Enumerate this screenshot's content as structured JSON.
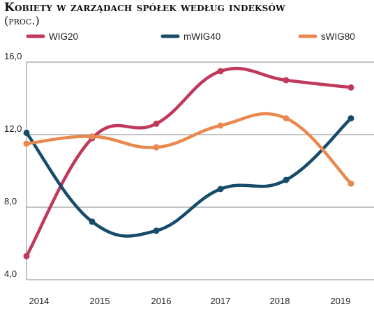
{
  "chart_data": {
    "type": "line",
    "title": "Kobiety w zarządach spółek według indeksów",
    "subtitle": "(proc.)",
    "xlabel": "",
    "ylabel": "",
    "categories": [
      "2014",
      "2015",
      "2016",
      "2017",
      "2018",
      "2019"
    ],
    "ylim": [
      4,
      16
    ],
    "yticks": [
      4,
      8,
      12,
      16
    ],
    "ytick_labels": [
      "4,0",
      "8,0",
      "12,0",
      "16,0"
    ],
    "grid": true,
    "legend_position": "top",
    "series": [
      {
        "name": "WIG20",
        "color": "#c0395b",
        "values": [
          5.3,
          11.8,
          12.6,
          15.5,
          15.0,
          14.6
        ]
      },
      {
        "name": "mWIG40",
        "color": "#154b6b",
        "values": [
          12.1,
          7.2,
          6.7,
          9.0,
          9.5,
          12.9
        ]
      },
      {
        "name": "sWIG80",
        "color": "#e8894f",
        "values": [
          11.5,
          11.9,
          11.3,
          12.5,
          12.9,
          9.3
        ]
      }
    ]
  }
}
